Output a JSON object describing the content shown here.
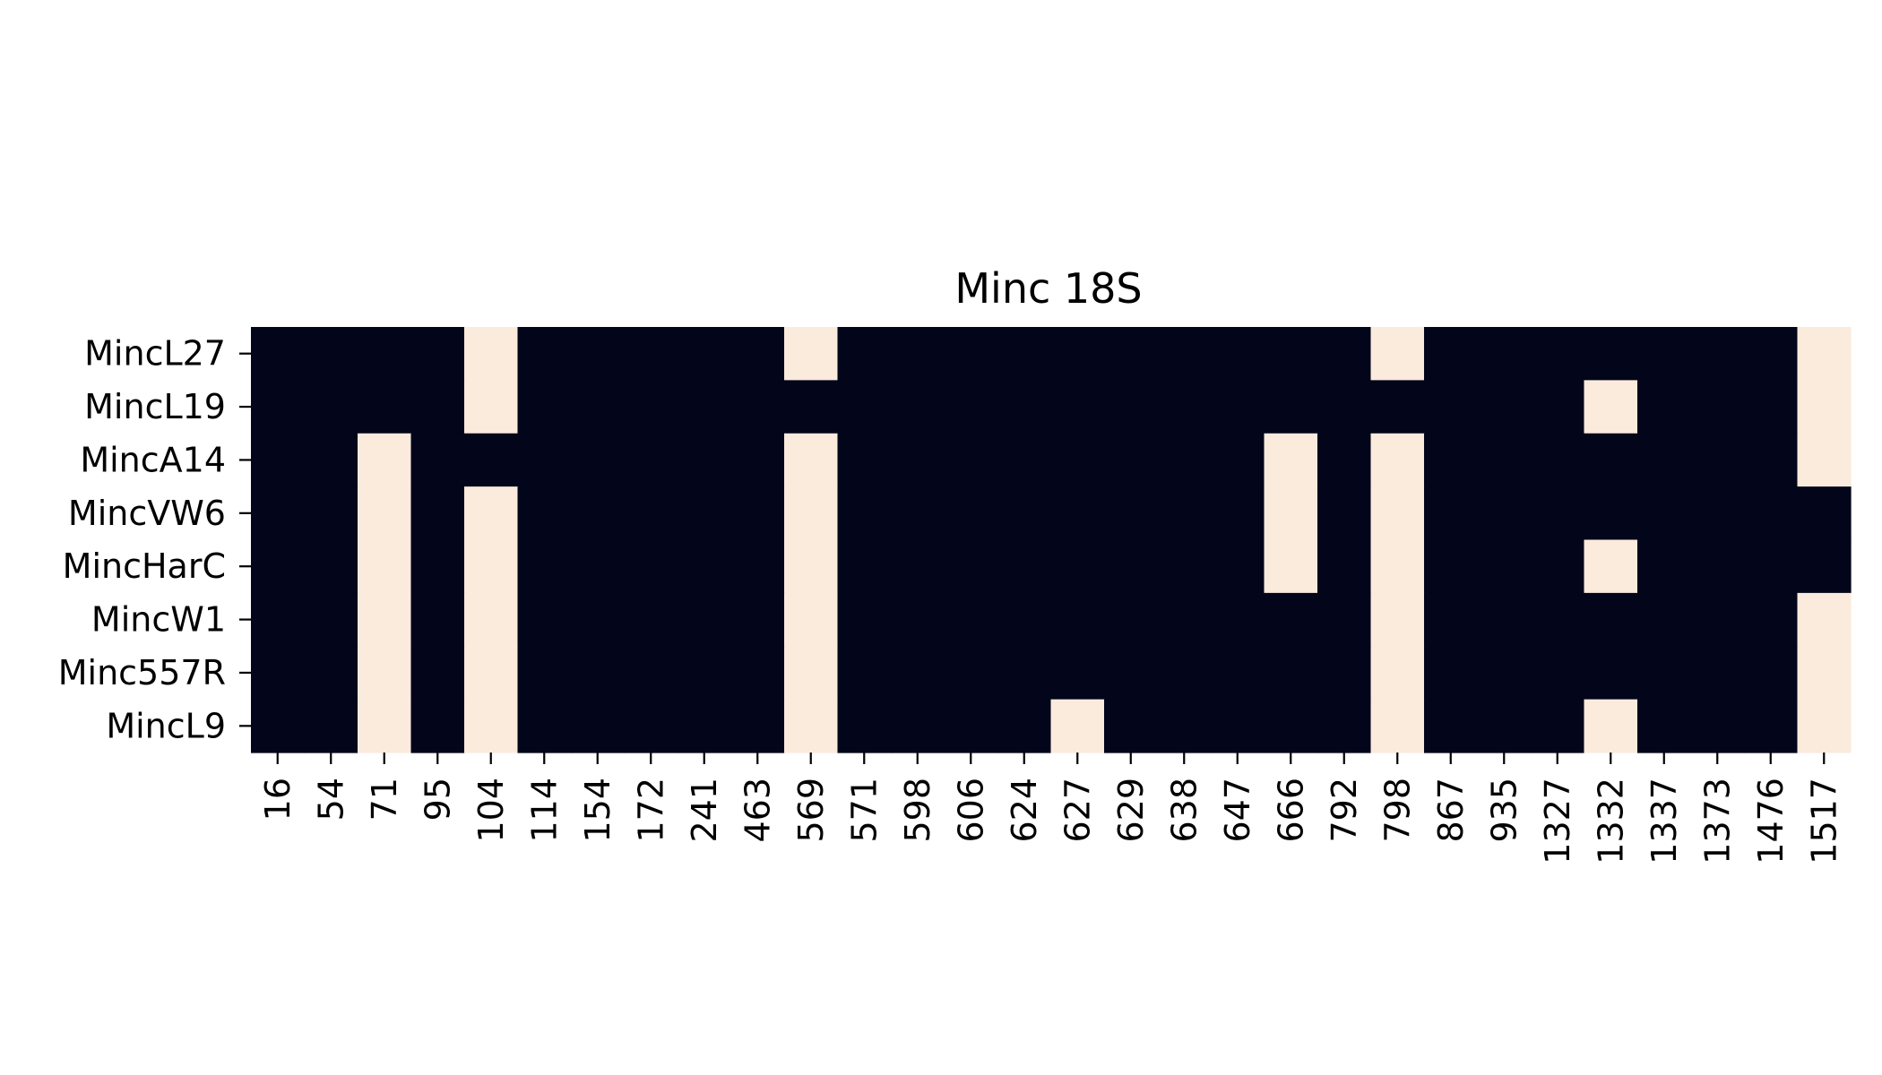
{
  "chart_data": {
    "type": "heatmap",
    "title": "Minc 18S",
    "xlabel": "",
    "ylabel": "",
    "rows": [
      "MincL27",
      "MincL19",
      "MincA14",
      "MincVW6",
      "MincHarC",
      "MincW1",
      "Minc557R",
      "MincL9"
    ],
    "columns": [
      "16",
      "54",
      "71",
      "95",
      "104",
      "114",
      "154",
      "172",
      "241",
      "463",
      "569",
      "571",
      "598",
      "606",
      "624",
      "627",
      "629",
      "638",
      "647",
      "666",
      "792",
      "798",
      "867",
      "935",
      "1327",
      "1332",
      "1337",
      "1373",
      "1476",
      "1517"
    ],
    "values": [
      [
        0,
        0,
        0,
        0,
        1,
        0,
        0,
        0,
        0,
        0,
        1,
        0,
        0,
        0,
        0,
        0,
        0,
        0,
        0,
        0,
        0,
        1,
        0,
        0,
        0,
        0,
        0,
        0,
        0,
        1
      ],
      [
        0,
        0,
        0,
        0,
        1,
        0,
        0,
        0,
        0,
        0,
        0,
        0,
        0,
        0,
        0,
        0,
        0,
        0,
        0,
        0,
        0,
        0,
        0,
        0,
        0,
        1,
        0,
        0,
        0,
        1
      ],
      [
        0,
        0,
        1,
        0,
        0,
        0,
        0,
        0,
        0,
        0,
        1,
        0,
        0,
        0,
        0,
        0,
        0,
        0,
        0,
        1,
        0,
        1,
        0,
        0,
        0,
        0,
        0,
        0,
        0,
        1
      ],
      [
        0,
        0,
        1,
        0,
        1,
        0,
        0,
        0,
        0,
        0,
        1,
        0,
        0,
        0,
        0,
        0,
        0,
        0,
        0,
        1,
        0,
        1,
        0,
        0,
        0,
        0,
        0,
        0,
        0,
        0
      ],
      [
        0,
        0,
        1,
        0,
        1,
        0,
        0,
        0,
        0,
        0,
        1,
        0,
        0,
        0,
        0,
        0,
        0,
        0,
        0,
        1,
        0,
        1,
        0,
        0,
        0,
        1,
        0,
        0,
        0,
        0
      ],
      [
        0,
        0,
        1,
        0,
        1,
        0,
        0,
        0,
        0,
        0,
        1,
        0,
        0,
        0,
        0,
        0,
        0,
        0,
        0,
        0,
        0,
        1,
        0,
        0,
        0,
        0,
        0,
        0,
        0,
        1
      ],
      [
        0,
        0,
        1,
        0,
        1,
        0,
        0,
        0,
        0,
        0,
        1,
        0,
        0,
        0,
        0,
        0,
        0,
        0,
        0,
        0,
        0,
        1,
        0,
        0,
        0,
        0,
        0,
        0,
        0,
        1
      ],
      [
        0,
        0,
        1,
        0,
        1,
        0,
        0,
        0,
        0,
        0,
        1,
        0,
        0,
        0,
        0,
        1,
        0,
        0,
        0,
        0,
        0,
        1,
        0,
        0,
        0,
        1,
        0,
        0,
        0,
        1
      ]
    ],
    "value_colors": {
      "0": "#03051a",
      "1": "#faebdd"
    },
    "colorbar": false,
    "grid": false,
    "legend": "none"
  }
}
